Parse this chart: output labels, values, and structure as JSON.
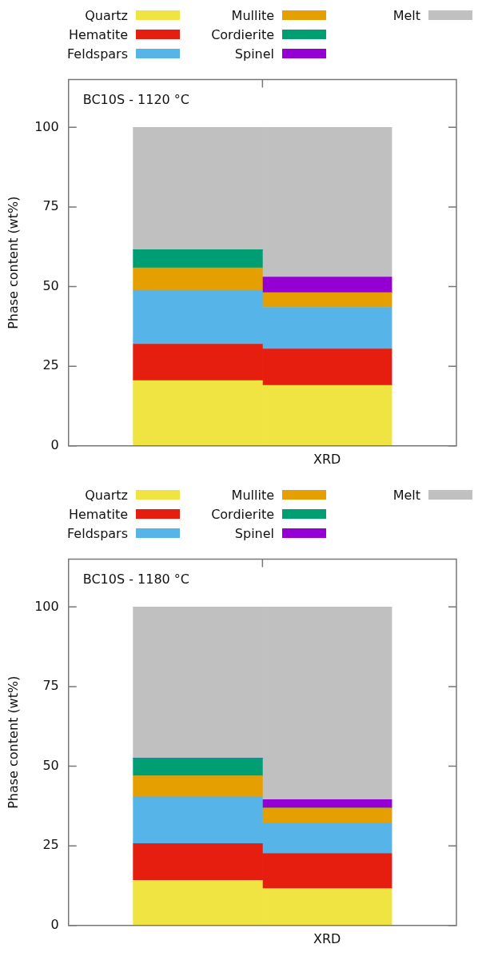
{
  "chart_data": [
    {
      "type": "bar",
      "title": "BC10S - 1120 °C",
      "ylabel": "Phase content (wt%)",
      "categories": [
        null,
        "XRD"
      ],
      "stacked": true,
      "ylim": [
        0,
        115
      ],
      "yticks": [
        0,
        25,
        50,
        75,
        100
      ],
      "grid": false,
      "legend": "top",
      "series": [
        {
          "name": "Quartz",
          "color": "#f0e442",
          "values": [
            20.5,
            19.0
          ]
        },
        {
          "name": "Hematite",
          "color": "#e51e10",
          "values": [
            11.4,
            11.4
          ]
        },
        {
          "name": "Feldspars",
          "color": "#56b4e9",
          "values": [
            17.0,
            13.1
          ]
        },
        {
          "name": "Mullite",
          "color": "#e69f00",
          "values": [
            7.0,
            4.6
          ]
        },
        {
          "name": "Cordierite",
          "color": "#009e73",
          "values": [
            5.7,
            0
          ]
        },
        {
          "name": "Spinel",
          "color": "#9400d3",
          "values": [
            0,
            4.9
          ]
        },
        {
          "name": "Melt",
          "color": "#c0c0c0",
          "values": [
            38.4,
            47.0
          ]
        }
      ]
    },
    {
      "type": "bar",
      "title": "BC10S - 1180 °C",
      "ylabel": "Phase content (wt%)",
      "categories": [
        null,
        "XRD"
      ],
      "stacked": true,
      "ylim": [
        0,
        115
      ],
      "yticks": [
        0,
        25,
        50,
        75,
        100
      ],
      "grid": false,
      "legend": "top",
      "series": [
        {
          "name": "Quartz",
          "color": "#f0e442",
          "values": [
            14.2,
            11.6
          ]
        },
        {
          "name": "Hematite",
          "color": "#e51e10",
          "values": [
            11.5,
            11.0
          ]
        },
        {
          "name": "Feldspars",
          "color": "#56b4e9",
          "values": [
            14.7,
            9.5
          ]
        },
        {
          "name": "Mullite",
          "color": "#e69f00",
          "values": [
            6.6,
            4.8
          ]
        },
        {
          "name": "Cordierite",
          "color": "#009e73",
          "values": [
            5.5,
            0
          ]
        },
        {
          "name": "Spinel",
          "color": "#9400d3",
          "values": [
            0,
            2.6
          ]
        },
        {
          "name": "Melt",
          "color": "#c0c0c0",
          "values": [
            47.5,
            60.5
          ]
        }
      ]
    }
  ]
}
